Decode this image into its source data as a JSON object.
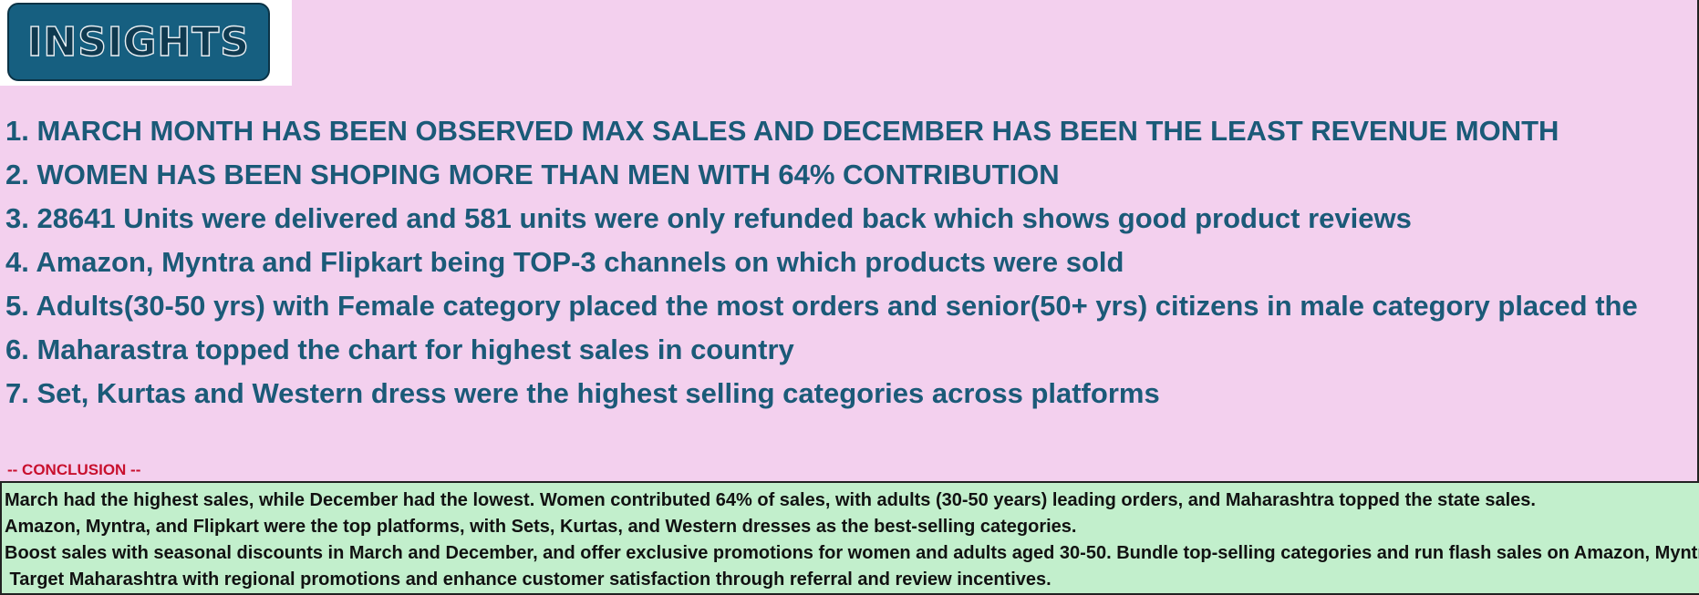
{
  "header": {
    "title": "INSIGHTS"
  },
  "insights": [
    "1. MARCH MONTH HAS BEEN OBSERVED MAX SALES AND DECEMBER HAS BEEN THE LEAST REVENUE MONTH",
    "2. WOMEN HAS BEEN SHOPING MORE THAN MEN WITH 64% CONTRIBUTION",
    "3. 28641 Units were delivered and 581 units were only refunded back which shows good product reviews",
    "4. Amazon, Myntra and Flipkart being TOP-3  channels on which products were sold",
    "5. Adults(30-50 yrs) with Female category placed the most orders  and senior(50+ yrs) citizens in male category placed the",
    "6. Maharastra topped the chart for highest sales in country",
    "7. Set, Kurtas and Western dress were the highest selling categories across platforms"
  ],
  "conclusion": {
    "label": "-- CONCLUSION --",
    "lines": [
      "March had the highest sales, while December had the lowest. Women contributed 64% of sales, with adults (30-50 years) leading orders, and Maharashtra topped the state sales.",
      "Amazon, Myntra, and Flipkart were the top platforms, with Sets, Kurtas, and Western dresses as the best-selling categories.",
      "Boost sales with seasonal discounts in March and December, and offer exclusive promotions for women and adults aged 30-50. Bundle top-selling categories and run flash sales on Amazon, Myntra",
      " Target Maharashtra with regional promotions and enhance customer satisfaction through referral and review incentives."
    ]
  }
}
